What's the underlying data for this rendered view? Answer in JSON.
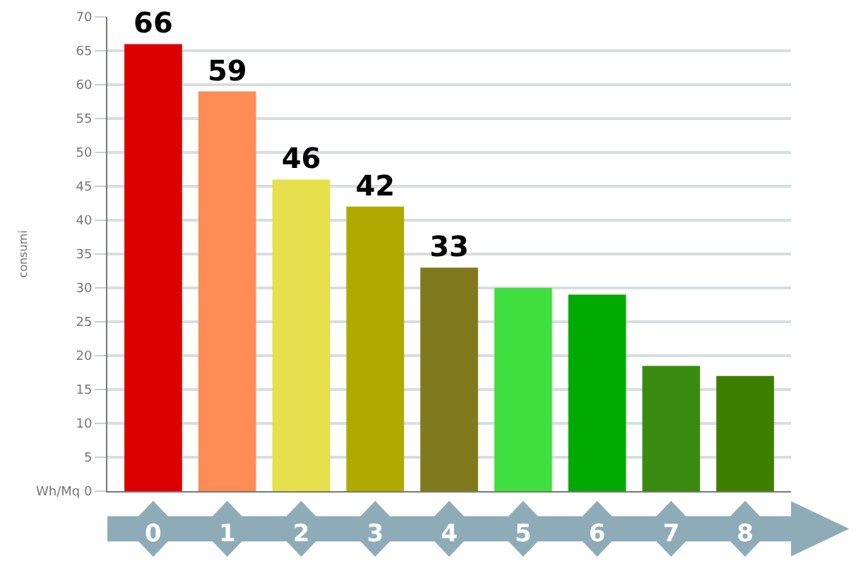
{
  "chart_data": {
    "type": "bar",
    "ylabel": "consumi",
    "categories": [
      "0",
      "1",
      "2",
      "3",
      "4",
      "5",
      "6",
      "7",
      "8"
    ],
    "values": [
      66,
      59,
      46,
      42,
      33,
      30,
      29,
      18.5,
      17
    ],
    "colors": [
      "#dd0000",
      "#ff8c55",
      "#e6e04c",
      "#b0aa00",
      "#807a1c",
      "#40e040",
      "#00aa00",
      "#3a8a10",
      "#3f7f00"
    ],
    "value_labels": [
      "66",
      "59",
      "46",
      "42",
      "33",
      null,
      null,
      null,
      null
    ],
    "ylim": [
      0,
      70
    ],
    "yticks": [
      {
        "value": 0,
        "label": "Wh/Mq 0"
      },
      5,
      10,
      15,
      20,
      25,
      30,
      35,
      40,
      45,
      50,
      55,
      60,
      65,
      70
    ],
    "grid": "y"
  }
}
